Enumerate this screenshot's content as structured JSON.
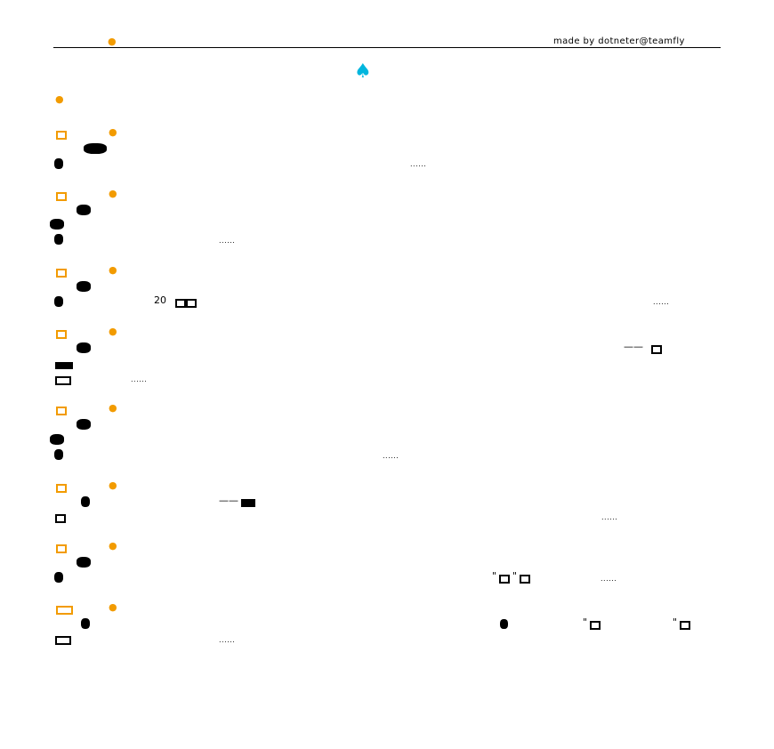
{
  "header": {
    "left_mark": "▲",
    "credit": "made by dotneter@teamfly"
  },
  "title": "",
  "entries": [
    {
      "dots": "......"
    },
    {
      "dots": "......"
    },
    {
      "number": "20",
      "dots": "......"
    },
    {
      "dash": "——",
      "dots": "......"
    },
    {
      "dots": "......"
    },
    {
      "dash": "——",
      "dots": "......"
    },
    {
      "quote": "\"",
      "quote2": "\"",
      "dots": "......"
    },
    {
      "quote": "\"",
      "quote2": "\"",
      "dots": "......"
    }
  ],
  "colors": {
    "accent": "#f29b00",
    "title": "#00b6de",
    "text": "#000000"
  }
}
